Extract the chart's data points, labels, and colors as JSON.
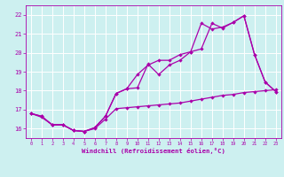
{
  "background_color": "#cdf0f0",
  "grid_color": "#ffffff",
  "line_color": "#aa00aa",
  "xlabel": "Windchill (Refroidissement éolien,°C)",
  "xlim": [
    -0.5,
    23.5
  ],
  "ylim": [
    15.5,
    22.5
  ],
  "yticks": [
    16,
    17,
    18,
    19,
    20,
    21,
    22
  ],
  "xticks": [
    0,
    1,
    2,
    3,
    4,
    5,
    6,
    7,
    8,
    9,
    10,
    11,
    12,
    13,
    14,
    15,
    16,
    17,
    18,
    19,
    20,
    21,
    22,
    23
  ],
  "series1_x": [
    0,
    1,
    2,
    3,
    4,
    5,
    6,
    7,
    8,
    9,
    10,
    11,
    12,
    13,
    14,
    15,
    16,
    17,
    18,
    19,
    20,
    21,
    22,
    23
  ],
  "series1_y": [
    16.8,
    16.6,
    16.2,
    16.2,
    15.9,
    15.85,
    16.05,
    16.65,
    17.85,
    18.1,
    18.15,
    19.4,
    18.85,
    19.35,
    19.6,
    20.05,
    20.2,
    21.55,
    21.3,
    21.6,
    21.95,
    19.9,
    18.45,
    17.95
  ],
  "series2_x": [
    0,
    1,
    2,
    3,
    4,
    5,
    6,
    7,
    8,
    9,
    10,
    11,
    12,
    13,
    14,
    15,
    16,
    17,
    18,
    19,
    20,
    21,
    22,
    23
  ],
  "series2_y": [
    16.8,
    16.65,
    16.2,
    16.2,
    15.9,
    15.85,
    16.0,
    16.5,
    17.05,
    17.1,
    17.15,
    17.2,
    17.25,
    17.3,
    17.35,
    17.45,
    17.55,
    17.65,
    17.75,
    17.8,
    17.9,
    17.95,
    18.0,
    18.05
  ],
  "series3_x": [
    0,
    1,
    2,
    3,
    4,
    5,
    6,
    7,
    8,
    9,
    10,
    11,
    12,
    13,
    14,
    15,
    16,
    17,
    18,
    19,
    20,
    21,
    22,
    23
  ],
  "series3_y": [
    16.8,
    16.65,
    16.2,
    16.2,
    15.9,
    15.85,
    16.05,
    16.65,
    17.85,
    18.1,
    18.85,
    19.35,
    19.6,
    19.6,
    19.9,
    20.05,
    21.55,
    21.25,
    21.35,
    21.6,
    21.95,
    19.9,
    18.45,
    17.95
  ]
}
